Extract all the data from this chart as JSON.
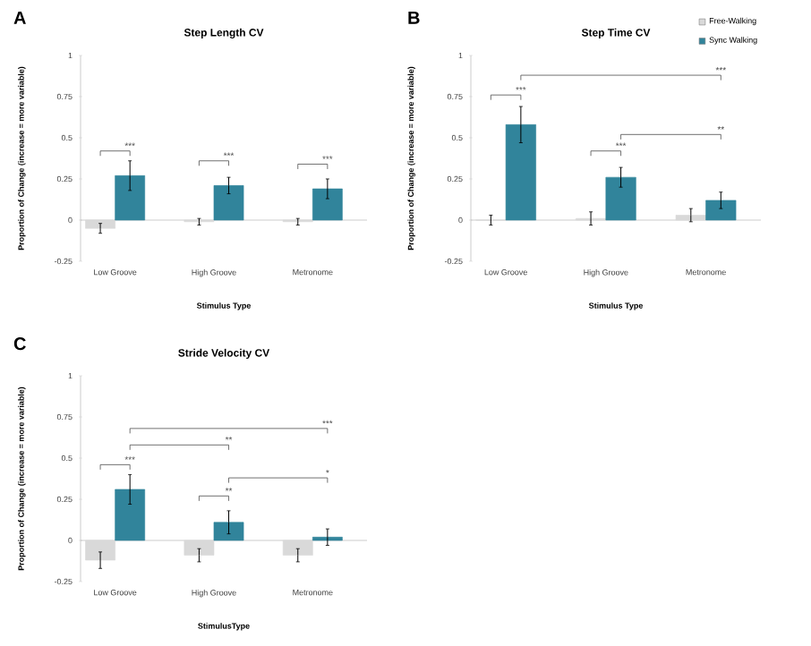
{
  "chart_data": [
    {
      "type": "bar",
      "title": "Step Length CV",
      "xlabel": "Stimulus Type",
      "ylabel": "Proportion of Change (increase = more variable)",
      "categories": [
        "Low Groove",
        "High Groove",
        "Metronome"
      ],
      "series": [
        {
          "color": "#d9d9d9",
          "values": [
            -0.05,
            -0.01,
            -0.01
          ],
          "errors": [
            0.03,
            0.02,
            0.02
          ]
        },
        {
          "color": "#31849b",
          "values": [
            0.27,
            0.21,
            0.19
          ],
          "errors": [
            0.09,
            0.05,
            0.06
          ]
        }
      ],
      "ylim": [
        -0.25,
        1
      ],
      "yticks": [
        -0.25,
        0,
        0.25,
        0.5,
        0.75,
        1
      ],
      "annotations": [
        "A",
        "***",
        "***",
        "***"
      ]
    },
    {
      "type": "bar",
      "title": "Step Time CV",
      "xlabel": "Stimulus Type",
      "ylabel": "Proportion of Change (increase = more variable)",
      "categories": [
        "Low Groove",
        "High Groove",
        "Metronome"
      ],
      "series": [
        {
          "name": "Free-Walking",
          "color": "#d9d9d9",
          "values": [
            0.0,
            0.01,
            0.03
          ],
          "errors": [
            0.03,
            0.04,
            0.04
          ]
        },
        {
          "name": "Sync Walking",
          "color": "#31849b",
          "values": [
            0.58,
            0.26,
            0.12
          ],
          "errors": [
            0.11,
            0.06,
            0.05
          ]
        }
      ],
      "ylim": [
        -0.25,
        1
      ],
      "yticks": [
        -0.25,
        0,
        0.25,
        0.5,
        0.75,
        1
      ],
      "legend": "top right",
      "annotations": [
        "B",
        "***",
        "***",
        "***",
        "**"
      ]
    },
    {
      "type": "bar",
      "title": "Stride Velocity CV",
      "xlabel": "StimulusType",
      "ylabel": "Proportion of Change (increase = more variable)",
      "categories": [
        "Low Groove",
        "High Groove",
        "Metronome"
      ],
      "series": [
        {
          "color": "#d9d9d9",
          "values": [
            -0.12,
            -0.09,
            -0.09
          ],
          "errors": [
            0.05,
            0.04,
            0.04
          ]
        },
        {
          "color": "#31849b",
          "values": [
            0.31,
            0.11,
            0.02
          ],
          "errors": [
            0.09,
            0.07,
            0.05
          ]
        }
      ],
      "ylim": [
        -0.25,
        1
      ],
      "yticks": [
        -0.25,
        0,
        0.25,
        0.5,
        0.75,
        1
      ],
      "annotations": [
        "C",
        "***",
        "**",
        "***",
        "**",
        "*"
      ]
    }
  ]
}
